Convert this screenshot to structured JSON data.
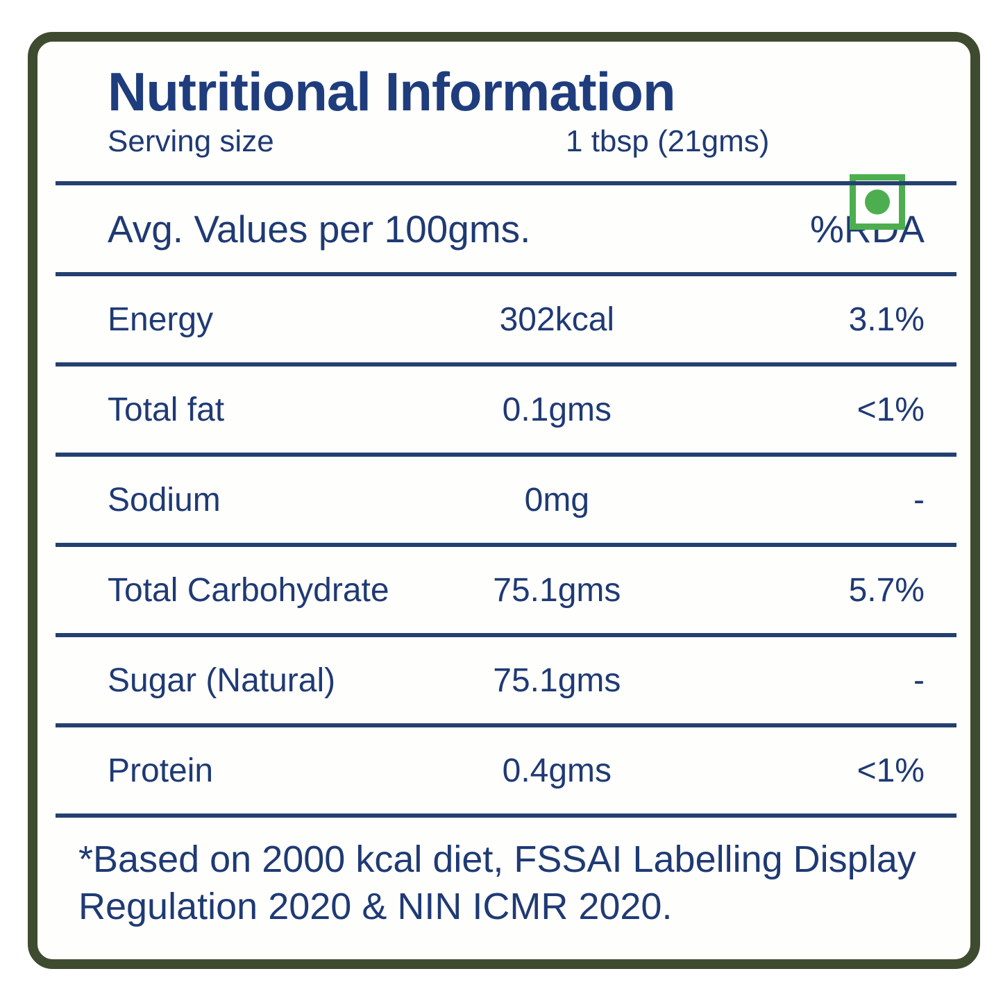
{
  "label": {
    "title": "Nutritional Information",
    "serving": {
      "label": "Serving size",
      "value": "1 tbsp (21gms)"
    },
    "columns": {
      "avg": "Avg. Values per 100gms.",
      "rda": "%RDA"
    },
    "rows": [
      {
        "name": "Energy",
        "value": "302kcal",
        "rda": "3.1%"
      },
      {
        "name": "Total fat",
        "value": "0.1gms",
        "rda": "<1%"
      },
      {
        "name": "Sodium",
        "value": "0mg",
        "rda": "-"
      },
      {
        "name": "Total Carbohydrate",
        "value": "75.1gms",
        "rda": "5.7%"
      },
      {
        "name": "Sugar (Natural)",
        "value": "75.1gms",
        "rda": "-"
      },
      {
        "name": "Protein",
        "value": "0.4gms",
        "rda": "<1%"
      }
    ],
    "footnote": "*Based on 2000 kcal diet, FSSAI Labelling Display Regulation 2020 & NIN ICMR 2020."
  },
  "icons": {
    "veg_mark": "vegetarian-mark-green-dot-in-square"
  },
  "colors": {
    "text_navy": "#1f3a74",
    "line_navy": "#24406f",
    "border_green": "#3e4b2f",
    "veg_green": "#4cae4f",
    "background": "#fefefc"
  }
}
